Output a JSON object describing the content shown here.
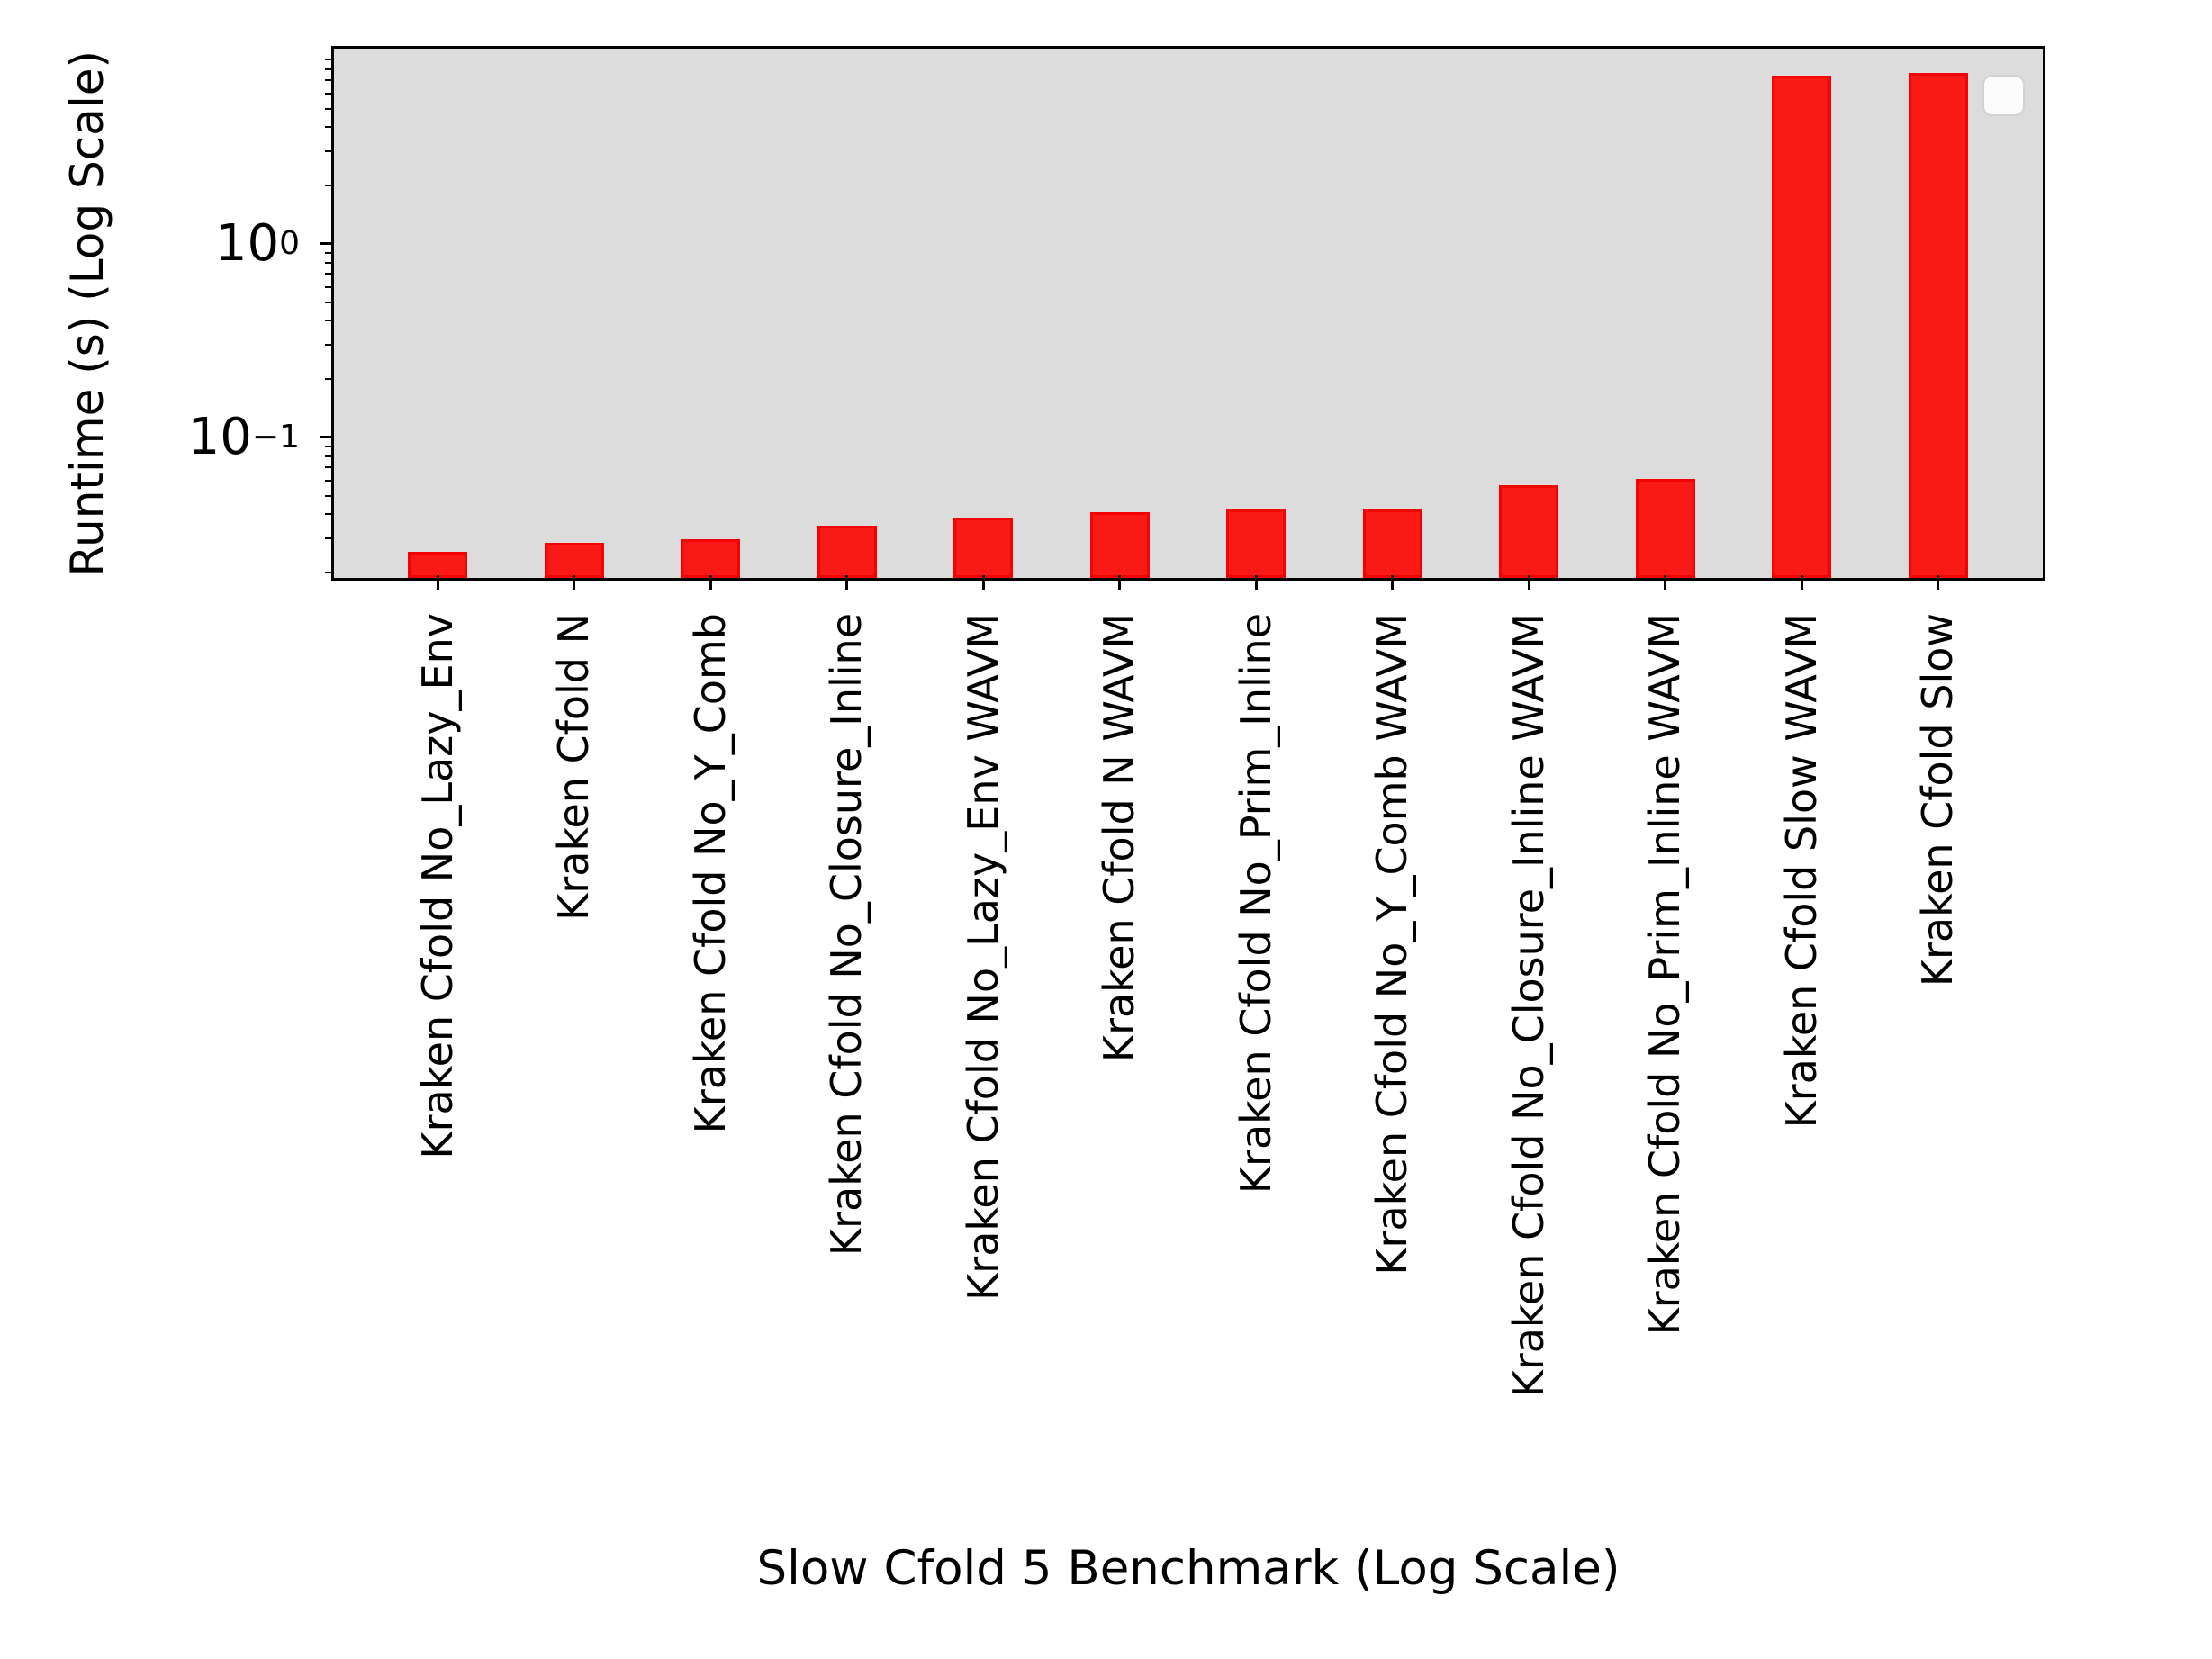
{
  "chart_data": {
    "type": "bar",
    "title": "",
    "xlabel": "Slow Cfold 5 Benchmark (Log Scale)",
    "ylabel": "Runtime (s) (Log Scale)",
    "yscale": "log",
    "ylim": [
      0.0188,
      10.2
    ],
    "grid": false,
    "legend": {
      "visible": true,
      "entries": [],
      "style": "empty-rounded-box",
      "position": "upper-right"
    },
    "categories": [
      "Kraken Cfold No_Lazy_Env",
      "Kraken Cfold N",
      "Kraken Cfold No_Y_Comb",
      "Kraken Cfold No_Closure_Inline",
      "Kraken Cfold No_Lazy_Env WAVM",
      "Kraken Cfold N WAVM",
      "Kraken Cfold No_Prim_Inline",
      "Kraken Cfold No_Y_Comb WAVM",
      "Kraken Cfold No_Closure_Inline WAVM",
      "Kraken Cfold No_Prim_Inline WAVM",
      "Kraken Cfold Slow WAVM",
      "Kraken Cfold Slow"
    ],
    "values": [
      0.0256,
      0.0284,
      0.0297,
      0.0348,
      0.0387,
      0.0413,
      0.0423,
      0.0423,
      0.0568,
      0.0612,
      7.42,
      7.66
    ],
    "yticks": [
      {
        "base": "10",
        "exp": "0",
        "value": 1.0
      },
      {
        "base": "10",
        "exp": "−1",
        "value": 0.1
      }
    ],
    "colors": {
      "bar_fill": "#f91a16",
      "bar_edge": "#f20404",
      "plot_bg": "#dcdcdc",
      "figure_bg": "#ffffff",
      "axis_color": "#000000"
    }
  }
}
